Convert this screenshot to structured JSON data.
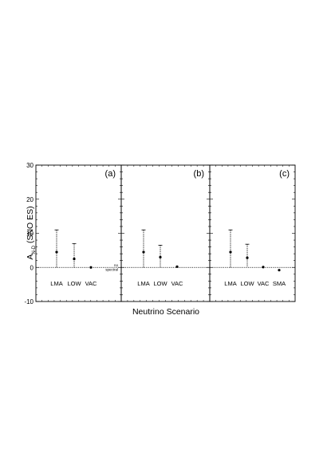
{
  "chart_data": [
    {
      "type": "scatter",
      "panel_label": "(a)",
      "categories": [
        "LMA",
        "LOW",
        "VAC"
      ],
      "values": [
        4.5,
        2.5,
        0.0
      ],
      "error_plus": [
        6.5,
        4.5,
        0.0
      ],
      "error_minus": [
        4.5,
        2.5,
        0.0
      ],
      "annotation": [
        "no",
        "spectral"
      ],
      "ylim": [
        -10,
        30
      ],
      "yticks": [
        "30",
        "20",
        "10",
        "0",
        "-10"
      ],
      "grid": false
    },
    {
      "type": "scatter",
      "panel_label": "(b)",
      "categories": [
        "LMA",
        "LOW",
        "VAC"
      ],
      "values": [
        4.5,
        3.0,
        0.2
      ],
      "error_plus": [
        6.5,
        3.5,
        0.0
      ],
      "error_minus": [
        4.5,
        3.0,
        0.0
      ],
      "ylim": [
        -10,
        30
      ],
      "grid": false
    },
    {
      "type": "scatter",
      "panel_label": "(c)",
      "categories": [
        "LMA",
        "LOW",
        "VAC",
        "SMA"
      ],
      "values": [
        4.5,
        2.8,
        0.1,
        -0.8
      ],
      "error_plus": [
        6.5,
        4.0,
        0.0,
        0.0
      ],
      "error_minus": [
        4.5,
        2.8,
        0.0,
        0.0
      ],
      "ylim": [
        -10,
        30
      ],
      "grid": false
    }
  ],
  "ylabel": "A",
  "ylabel_sub": "N-D",
  "ylabel_rest": " (SNO ES)",
  "xlabel": "Neutrino Scenario"
}
